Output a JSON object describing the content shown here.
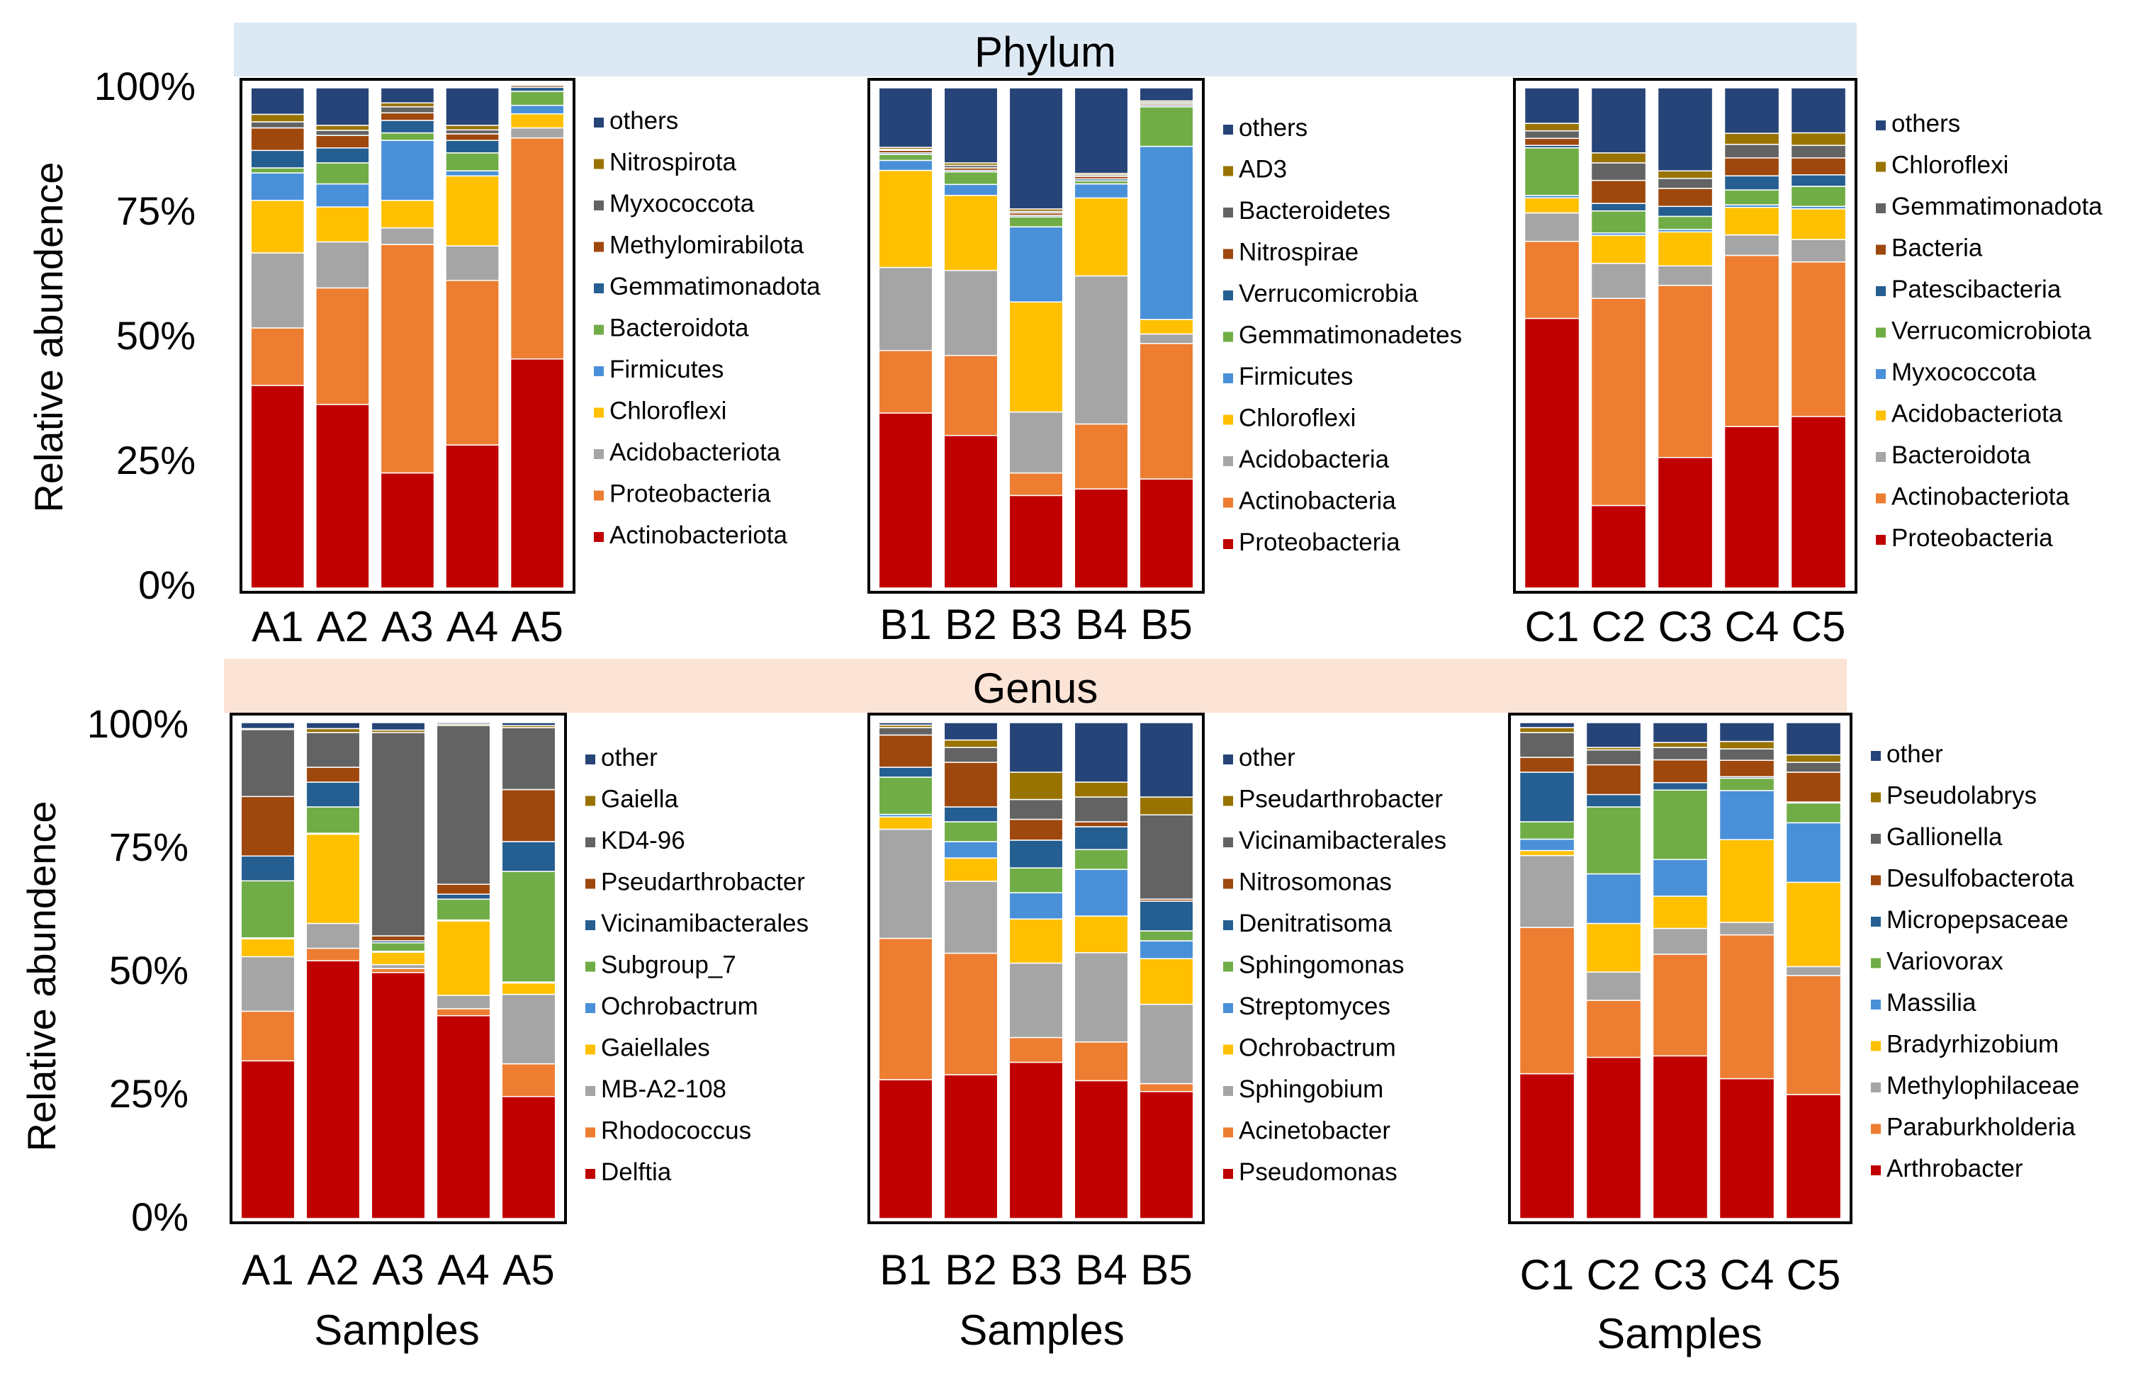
{
  "sections": [
    {
      "title": "Phylum",
      "color": "#dce9f5"
    },
    {
      "title": "Genus",
      "color": "#fbe3d6"
    }
  ],
  "axis": {
    "ylabel": "Relative abundence",
    "xlabel": "Samples",
    "ticks": [
      "0%",
      "25%",
      "50%",
      "75%",
      "100%"
    ]
  },
  "colors": [
    "#c00000",
    "#ed7d31",
    "#a5a5a5",
    "#ffc000",
    "#4a90d9",
    "#70ad47",
    "#255e91",
    "#9e480e",
    "#636363",
    "#997300",
    "#264478"
  ],
  "chart_data": [
    {
      "type": "bar",
      "stacked": true,
      "row": "Phylum",
      "group": "A",
      "ylim": [
        0,
        100
      ],
      "categories": [
        "A1",
        "A2",
        "A3",
        "A4",
        "A5"
      ],
      "series": [
        {
          "name": "Actinobacteriota",
          "values": [
            40.5,
            36.7,
            23.0,
            28.6,
            45.8
          ]
        },
        {
          "name": "Proteobacteria",
          "values": [
            11.5,
            23.3,
            45.7,
            32.9,
            44.2
          ]
        },
        {
          "name": "Acidobacteriota",
          "values": [
            15.0,
            9.2,
            3.3,
            6.9,
            2.0
          ]
        },
        {
          "name": "Chloroflexi",
          "values": [
            10.5,
            7.0,
            5.5,
            14.0,
            2.8
          ]
        },
        {
          "name": "Firmicutes",
          "values": [
            5.5,
            4.6,
            12.0,
            1.0,
            1.7
          ]
        },
        {
          "name": "Bacteroidota",
          "values": [
            1.0,
            4.2,
            1.5,
            3.6,
            2.8
          ]
        },
        {
          "name": "Gemmatimonadota",
          "values": [
            3.5,
            3.0,
            2.5,
            2.5,
            0.8
          ]
        },
        {
          "name": "Methylomirabilota",
          "values": [
            4.5,
            2.5,
            1.5,
            1.3,
            0.4
          ]
        },
        {
          "name": "Myxococcota",
          "values": [
            1.2,
            1.0,
            1.2,
            0.8,
            0.2
          ]
        },
        {
          "name": "Nitrospirota",
          "values": [
            1.5,
            1.0,
            0.8,
            0.9,
            0.2
          ]
        },
        {
          "name": "others",
          "values": [
            5.3,
            7.5,
            3.0,
            7.5,
            0.1
          ]
        }
      ]
    },
    {
      "type": "bar",
      "stacked": true,
      "row": "Phylum",
      "group": "B",
      "ylim": [
        0,
        100
      ],
      "categories": [
        "B1",
        "B2",
        "B3",
        "B4",
        "B5"
      ],
      "series": [
        {
          "name": "Proteobacteria",
          "values": [
            35.0,
            30.5,
            18.5,
            19.8,
            21.8
          ]
        },
        {
          "name": "Actinobacteria",
          "values": [
            12.5,
            16.0,
            4.5,
            13.0,
            27.1
          ]
        },
        {
          "name": "Acidobacteria",
          "values": [
            16.6,
            17.0,
            12.2,
            29.6,
            1.9
          ]
        },
        {
          "name": "Chloroflexi",
          "values": [
            19.4,
            15.0,
            22.0,
            15.6,
            2.9
          ]
        },
        {
          "name": "Firmicutes",
          "values": [
            2.0,
            2.2,
            15.0,
            2.8,
            34.6
          ]
        },
        {
          "name": "Gemmatimonadetes",
          "values": [
            1.2,
            2.5,
            2.0,
            0.6,
            7.9
          ]
        },
        {
          "name": "Verrucomicrobia",
          "values": [
            0.3,
            0.3,
            0.3,
            0.4,
            0.3
          ]
        },
        {
          "name": "Nitrospirae",
          "values": [
            0.5,
            0.5,
            0.5,
            0.5,
            0.3
          ]
        },
        {
          "name": "Bacteroidetes",
          "values": [
            0.2,
            0.5,
            0.3,
            0.3,
            0.3
          ]
        },
        {
          "name": "AD3",
          "values": [
            0.4,
            0.5,
            0.5,
            0.3,
            0.3
          ]
        },
        {
          "name": "others",
          "values": [
            11.9,
            15.0,
            24.2,
            17.1,
            2.6
          ]
        }
      ]
    },
    {
      "type": "bar",
      "stacked": true,
      "row": "Phylum",
      "group": "C",
      "ylim": [
        0,
        100
      ],
      "categories": [
        "C1",
        "C2",
        "C3",
        "C4",
        "C5"
      ],
      "series": [
        {
          "name": "Proteobacteria",
          "values": [
            53.9,
            16.5,
            26.1,
            32.3,
            34.3
          ]
        },
        {
          "name": "Actinobacteriota",
          "values": [
            15.4,
            41.4,
            34.4,
            34.2,
            30.9
          ]
        },
        {
          "name": "Bacteroidota",
          "values": [
            5.7,
            7.0,
            3.9,
            4.1,
            4.5
          ]
        },
        {
          "name": "Acidobacteriota",
          "values": [
            3.0,
            5.6,
            6.8,
            5.5,
            6.1
          ]
        },
        {
          "name": "Myxococcota",
          "values": [
            0.5,
            0.5,
            0.5,
            0.5,
            0.5
          ]
        },
        {
          "name": "Verrucomicrobiota",
          "values": [
            9.5,
            4.4,
            2.6,
            3.0,
            4.0
          ]
        },
        {
          "name": "Patescibacteria",
          "values": [
            0.5,
            1.5,
            2.0,
            2.8,
            2.3
          ]
        },
        {
          "name": "Bacteria",
          "values": [
            1.4,
            4.6,
            3.6,
            3.6,
            3.4
          ]
        },
        {
          "name": "Gemmatimonadota",
          "values": [
            1.5,
            3.5,
            2.0,
            2.7,
            2.5
          ]
        },
        {
          "name": "Chloroflexi",
          "values": [
            1.5,
            2.0,
            1.5,
            2.2,
            2.5
          ]
        },
        {
          "name": "others",
          "values": [
            7.1,
            13.0,
            16.6,
            9.1,
            9.0
          ]
        }
      ]
    },
    {
      "type": "bar",
      "stacked": true,
      "row": "Genus",
      "group": "A",
      "ylim": [
        0,
        100
      ],
      "categories": [
        "A1",
        "A2",
        "A3",
        "A4",
        "A5"
      ],
      "series": [
        {
          "name": "Delftia",
          "values": [
            31.8,
            52.0,
            49.6,
            40.9,
            24.6
          ]
        },
        {
          "name": "Rhodococcus",
          "values": [
            10.0,
            2.5,
            0.8,
            1.4,
            6.6
          ]
        },
        {
          "name": "MB-A2-108",
          "values": [
            11.0,
            5.0,
            0.8,
            2.7,
            14.0
          ]
        },
        {
          "name": "Gaiellales",
          "values": [
            3.6,
            18.0,
            2.5,
            15.0,
            2.3
          ]
        },
        {
          "name": "Ochrobactrum",
          "values": [
            0.2,
            0.2,
            0.2,
            0.2,
            0.2
          ]
        },
        {
          "name": "Subgroup_7",
          "values": [
            11.5,
            5.3,
            1.7,
            4.2,
            22.3
          ]
        },
        {
          "name": "Vicinamibacterales",
          "values": [
            5.0,
            5.0,
            0.4,
            1.0,
            6.0
          ]
        },
        {
          "name": "Pseudarthrobacter",
          "values": [
            12.0,
            3.0,
            1.0,
            2.0,
            10.5
          ]
        },
        {
          "name": "KD4-96",
          "values": [
            13.5,
            7.0,
            41.0,
            32.0,
            12.5
          ]
        },
        {
          "name": "Gaiella",
          "values": [
            0.2,
            0.8,
            0.5,
            0.3,
            0.4
          ]
        },
        {
          "name": "other",
          "values": [
            1.2,
            1.2,
            1.5,
            0.3,
            0.6
          ]
        }
      ]
    },
    {
      "type": "bar",
      "stacked": true,
      "row": "Genus",
      "group": "B",
      "ylim": [
        0,
        100
      ],
      "categories": [
        "B1",
        "B2",
        "B3",
        "B4",
        "B5"
      ],
      "series": [
        {
          "name": "Pseudomonas",
          "values": [
            28.0,
            29.0,
            31.5,
            27.8,
            25.6
          ]
        },
        {
          "name": "Acinetobacter",
          "values": [
            28.5,
            24.5,
            5.0,
            7.8,
            1.6
          ]
        },
        {
          "name": "Sphingobium",
          "values": [
            22.0,
            14.5,
            15.0,
            18.0,
            16.0
          ]
        },
        {
          "name": "Ochrobactrum",
          "values": [
            2.5,
            4.7,
            8.9,
            7.4,
            9.2
          ]
        },
        {
          "name": "Streptomyces",
          "values": [
            0.5,
            3.3,
            5.3,
            9.4,
            3.6
          ]
        },
        {
          "name": "Sphingomonas",
          "values": [
            7.5,
            4.0,
            5.0,
            4.0,
            2.0
          ]
        },
        {
          "name": "Denitratisoma",
          "values": [
            2.0,
            3.0,
            5.6,
            4.6,
            6.0
          ]
        },
        {
          "name": "Nitrosomonas",
          "values": [
            6.5,
            9.0,
            4.2,
            1.0,
            0.4
          ]
        },
        {
          "name": "Vicinamibacterales",
          "values": [
            1.5,
            3.0,
            4.0,
            5.0,
            17.0
          ]
        },
        {
          "name": "Pseudarthrobacter",
          "values": [
            0.5,
            1.5,
            5.5,
            3.0,
            3.6
          ]
        },
        {
          "name": "other",
          "values": [
            0.5,
            3.5,
            10.0,
            12.0,
            15.0
          ]
        }
      ]
    },
    {
      "type": "bar",
      "stacked": true,
      "row": "Genus",
      "group": "C",
      "ylim": [
        0,
        100
      ],
      "categories": [
        "C1",
        "C2",
        "C3",
        "C4",
        "C5"
      ],
      "series": [
        {
          "name": "Arthrobacter",
          "values": [
            29.2,
            32.5,
            32.8,
            28.2,
            25.0
          ]
        },
        {
          "name": "Paraburkholderia",
          "values": [
            29.5,
            11.5,
            20.5,
            29.0,
            24.0
          ]
        },
        {
          "name": "Methylophilaceae",
          "values": [
            14.5,
            5.7,
            5.2,
            2.5,
            1.8
          ]
        },
        {
          "name": "Bradyrhizobium",
          "values": [
            1.0,
            9.8,
            6.5,
            16.7,
            17.0
          ]
        },
        {
          "name": "Massilia",
          "values": [
            2.3,
            10.0,
            7.4,
            9.9,
            12.0
          ]
        },
        {
          "name": "Variovorax",
          "values": [
            3.5,
            13.5,
            14.0,
            2.5,
            4.0
          ]
        },
        {
          "name": "Micropepsaceae",
          "values": [
            10.0,
            2.5,
            1.5,
            0.3,
            0.2
          ]
        },
        {
          "name": "Desulfobacterota",
          "values": [
            3.0,
            6.0,
            4.6,
            3.3,
            6.0
          ]
        },
        {
          "name": "Gallionella",
          "values": [
            5.0,
            3.0,
            2.5,
            2.3,
            2.0
          ]
        },
        {
          "name": "Pseudolabrys",
          "values": [
            1.0,
            0.5,
            1.0,
            1.5,
            1.5
          ]
        },
        {
          "name": "other",
          "values": [
            1.0,
            5.0,
            4.0,
            3.8,
            6.5
          ]
        }
      ]
    }
  ]
}
